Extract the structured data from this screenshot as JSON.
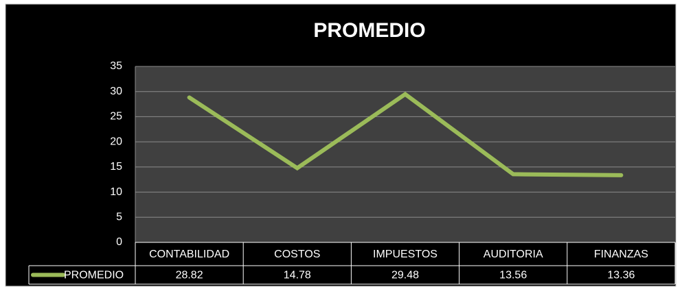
{
  "chart_data": {
    "type": "line",
    "title": "PROMEDIO",
    "categories": [
      "CONTABILIDAD",
      "COSTOS",
      "IMPUESTOS",
      "AUDITORIA",
      "FINANZAS"
    ],
    "series": [
      {
        "name": "PROMEDIO",
        "color": "#9bbb59",
        "values": [
          28.82,
          14.78,
          29.48,
          13.56,
          13.36
        ]
      }
    ],
    "ylim": [
      0,
      35
    ],
    "yticks": [
      0,
      5,
      10,
      15,
      20,
      25,
      30,
      35
    ],
    "grid": true
  }
}
